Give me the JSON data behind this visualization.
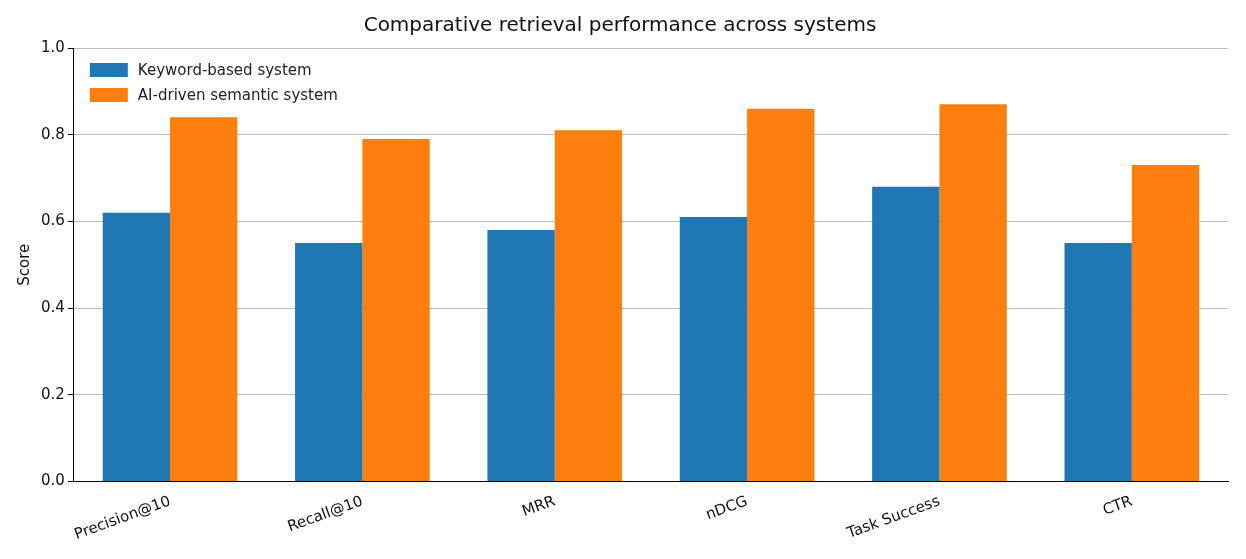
{
  "chart_data": {
    "type": "bar",
    "title": "Comparative retrieval performance across systems",
    "ylabel": "Score",
    "categories": [
      "Precision@10",
      "Recall@10",
      "MRR",
      "nDCG",
      "Task Success",
      "CTR"
    ],
    "series": [
      {
        "name": "Keyword-based system",
        "color": "#1f77b4",
        "values": [
          0.62,
          0.55,
          0.58,
          0.61,
          0.68,
          0.55
        ]
      },
      {
        "name": "AI-driven semantic system",
        "color": "#ff7f0e",
        "values": [
          0.84,
          0.79,
          0.81,
          0.86,
          0.87,
          0.73
        ]
      }
    ],
    "ylim": [
      0,
      1
    ],
    "yticks": [
      {
        "value": 0,
        "label": "0.0"
      },
      {
        "value": 0.2,
        "label": "0.2"
      },
      {
        "value": 0.4,
        "label": "0.4"
      },
      {
        "value": 0.6,
        "label": "0.6"
      },
      {
        "value": 0.8,
        "label": "0.8"
      },
      {
        "value": 1,
        "label": "1.0"
      }
    ],
    "grid": "y",
    "legend": "top left"
  }
}
